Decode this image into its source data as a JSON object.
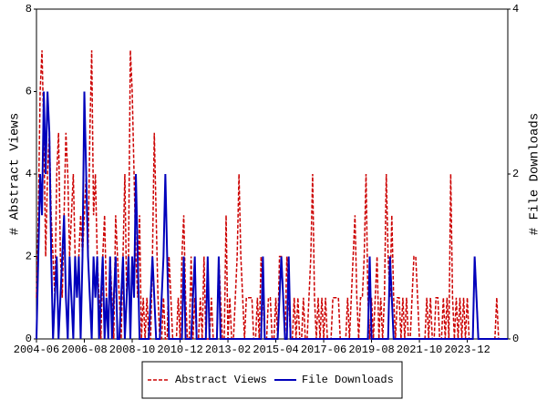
{
  "chart_data": {
    "type": "line",
    "ylabel": "# Abstract Views",
    "y2label": "# File Downloads",
    "ylim": [
      0,
      8
    ],
    "yticks": [
      0,
      2,
      4,
      6,
      8
    ],
    "y2lim": [
      0,
      4
    ],
    "y2ticks": [
      0,
      2,
      4
    ],
    "legend": "bottom",
    "categories": [
      "2004-06",
      null,
      null,
      null,
      null,
      null,
      null,
      null,
      null,
      null,
      null,
      null,
      null,
      null,
      null,
      null,
      null,
      null,
      null,
      null,
      null,
      null,
      null,
      null,
      null,
      null,
      "2006-08",
      null,
      null,
      null,
      null,
      null,
      null,
      null,
      null,
      null,
      null,
      null,
      null,
      null,
      null,
      null,
      null,
      null,
      null,
      null,
      null,
      null,
      null,
      null,
      null,
      null,
      "2008-10",
      null,
      null,
      null,
      null,
      null,
      null,
      null,
      null,
      null,
      null,
      null,
      null,
      null,
      null,
      null,
      null,
      null,
      null,
      null,
      null,
      null,
      null,
      null,
      null,
      null,
      "2010-12",
      null,
      null,
      null,
      null,
      null,
      null,
      null,
      null,
      null,
      null,
      null,
      null,
      null,
      null,
      null,
      null,
      null,
      null,
      null,
      null,
      null,
      null,
      null,
      null,
      null,
      "2013-02",
      null,
      null,
      null,
      null,
      null,
      null,
      null,
      null,
      null,
      null,
      null,
      null,
      null,
      null,
      null,
      null,
      null,
      null,
      null,
      null,
      null,
      null,
      null,
      null,
      null,
      "2015-04",
      null,
      null,
      null,
      null,
      null,
      null,
      null,
      null,
      null,
      null,
      null,
      null,
      null,
      null,
      null,
      null,
      null,
      null,
      null,
      null,
      null,
      null,
      null,
      null,
      null,
      "2017-06",
      null,
      null,
      null,
      null,
      null,
      null,
      null,
      null,
      null,
      null,
      null,
      null,
      null,
      null,
      null,
      null,
      null,
      null,
      null,
      null,
      null,
      null,
      null,
      null,
      null,
      "2019-08",
      null,
      null,
      null,
      null,
      null,
      null,
      null,
      null,
      null,
      null,
      null,
      null,
      null,
      null,
      null,
      null,
      null,
      null,
      null,
      null,
      null,
      null,
      null,
      null,
      null,
      "2021-10",
      null,
      null,
      null,
      null,
      null,
      null,
      null,
      null,
      null,
      null,
      null,
      null,
      null,
      null,
      null,
      null,
      null,
      null,
      null,
      null,
      null,
      null,
      null,
      null,
      null,
      "2023-12",
      null,
      null,
      null,
      null,
      null,
      null,
      null,
      null,
      null,
      null,
      null,
      null,
      null,
      null,
      null,
      null,
      null,
      null,
      null,
      null,
      null,
      null
    ],
    "series": [
      {
        "name": "Abstract Views",
        "color": "#cc0000",
        "dash": true,
        "values": [
          1,
          3,
          6,
          7,
          5,
          2,
          4,
          5,
          3,
          2,
          1,
          4,
          5,
          2,
          1,
          3,
          5,
          4,
          2,
          3,
          4,
          2,
          1,
          2,
          3,
          2,
          3,
          4,
          2,
          5,
          7,
          3,
          4,
          2,
          1,
          0,
          2,
          3,
          1,
          0,
          2,
          1,
          0,
          3,
          2,
          1,
          0,
          2,
          4,
          1,
          2,
          7,
          6,
          4,
          2,
          1,
          3,
          0,
          1,
          0,
          1,
          0,
          0,
          2,
          5,
          3,
          1,
          0,
          0,
          1,
          0,
          0,
          2,
          1,
          0,
          0,
          0,
          1,
          0,
          2,
          3,
          1,
          0,
          0,
          2,
          0,
          1,
          0,
          0,
          1,
          0,
          2,
          0,
          0,
          0,
          1,
          0,
          0,
          0,
          2,
          1,
          0,
          0,
          3,
          0,
          1,
          0,
          0,
          1,
          2,
          4,
          2,
          1,
          0,
          1,
          1,
          1,
          1,
          0,
          0,
          1,
          0,
          2,
          1,
          0,
          0,
          1,
          1,
          0,
          0,
          1,
          0,
          2,
          2,
          1,
          0,
          2,
          1,
          0,
          0,
          1,
          0,
          1,
          0,
          0,
          1,
          0,
          0,
          1,
          2,
          4,
          1,
          0,
          1,
          0,
          1,
          0,
          1,
          0,
          0,
          0,
          1,
          1,
          1,
          1,
          0,
          0,
          0,
          0,
          1,
          0,
          1,
          2,
          3,
          1,
          0,
          1,
          1,
          2,
          4,
          1,
          0,
          1,
          0,
          1,
          2,
          0,
          1,
          0,
          1,
          4,
          2,
          1,
          3,
          1,
          0,
          1,
          1,
          0,
          1,
          0,
          1,
          0,
          0,
          1,
          2,
          2,
          1,
          0,
          0,
          0,
          0,
          1,
          0,
          1,
          0,
          0,
          1,
          1,
          0,
          0,
          1,
          0,
          1,
          0,
          4,
          1,
          0,
          1,
          0,
          1,
          0,
          1,
          0,
          1,
          0,
          0,
          0,
          2,
          1,
          0,
          0,
          0,
          0,
          0,
          0,
          0,
          0,
          0,
          0,
          1,
          0,
          0,
          0,
          0,
          0,
          0
        ]
      },
      {
        "name": "File Downloads",
        "color": "#0000bb",
        "axis": "y2",
        "values": [
          0,
          1,
          2,
          1.5,
          3,
          2,
          3,
          2.5,
          1,
          0,
          0.5,
          1,
          0,
          0.5,
          1,
          1.5,
          0.5,
          0,
          1,
          0.5,
          0,
          1,
          0.5,
          1,
          0,
          1,
          3,
          2,
          1,
          0.5,
          0,
          1,
          0.5,
          1,
          0,
          0.5,
          1,
          0,
          0.5,
          0,
          1,
          0,
          0.5,
          1,
          0,
          0,
          0.5,
          1,
          0,
          0.5,
          1,
          0,
          1,
          0.5,
          2,
          1,
          0,
          0,
          0,
          0,
          0,
          0,
          0.5,
          1,
          0.5,
          0,
          0,
          0,
          0.5,
          1,
          2,
          1,
          0,
          0,
          0,
          0,
          0,
          0,
          0,
          0,
          1,
          0,
          0,
          0,
          0,
          0.5,
          1,
          0,
          0,
          0,
          0,
          0,
          0,
          1,
          0,
          0,
          0,
          0,
          0,
          1,
          0,
          0,
          0,
          0,
          0,
          0,
          0,
          0,
          0,
          0,
          0,
          0,
          0,
          0,
          0,
          0,
          0,
          0,
          0,
          0,
          0,
          0,
          0,
          1,
          0,
          0,
          0,
          0,
          0,
          0,
          0,
          0,
          0.5,
          1,
          0.5,
          0,
          0,
          1,
          0,
          0,
          0,
          0,
          0,
          0,
          0,
          0,
          0,
          0,
          0,
          0,
          0,
          0,
          0,
          0,
          0,
          0,
          0,
          0,
          0,
          0,
          0,
          0,
          0,
          0,
          0,
          0,
          0,
          0,
          0,
          0,
          0,
          0,
          0,
          0,
          0,
          0,
          0,
          0,
          0,
          0,
          0,
          1,
          0,
          0,
          0,
          0,
          0,
          0,
          0,
          0,
          0,
          0,
          1,
          0.5,
          0,
          0,
          0,
          0,
          0,
          0,
          0,
          0,
          0,
          0,
          0,
          0,
          0,
          0,
          0,
          0,
          0,
          0,
          0,
          0,
          0,
          0,
          0,
          0,
          0,
          0,
          0,
          0,
          0,
          0,
          0,
          0,
          0,
          0,
          0,
          0,
          0,
          0,
          0,
          0,
          0,
          0,
          0,
          0,
          1,
          0.5,
          0,
          0,
          0,
          0,
          0,
          0,
          0,
          0,
          0,
          0,
          0,
          0,
          0,
          0,
          0,
          0,
          0
        ]
      }
    ]
  }
}
